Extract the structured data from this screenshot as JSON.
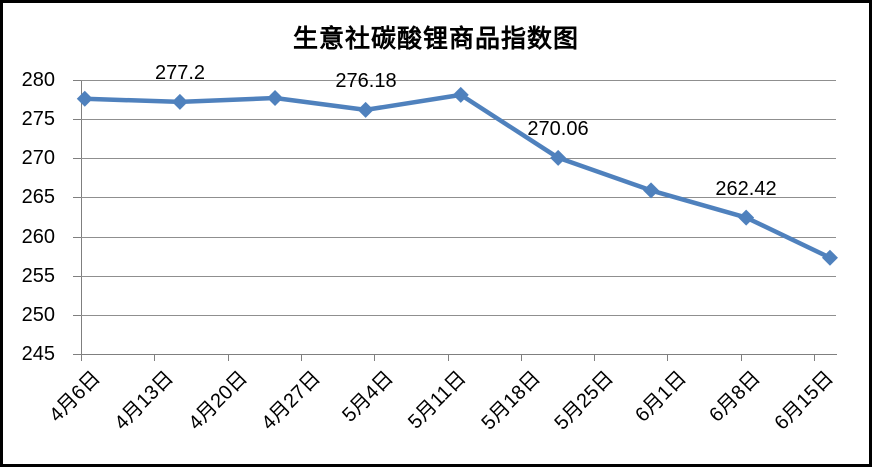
{
  "title": "生意社碳酸锂商品指数图",
  "chart_data": {
    "type": "line",
    "title": "生意社碳酸锂商品指数图",
    "xlabel": "",
    "ylabel": "",
    "ylim": [
      245,
      280
    ],
    "y_step": 5,
    "y_tick_labels": [
      "245",
      "250",
      "255",
      "260",
      "265",
      "270",
      "275",
      "280"
    ],
    "x_tick_labels": [
      "4月6日",
      "4月13日",
      "4月20日",
      "4月27日",
      "5月4日",
      "5月11日",
      "5月18日",
      "5月25日",
      "6月1日",
      "6月8日",
      "6月15日"
    ],
    "grid": true,
    "legend": false,
    "series": [
      {
        "marker": "diamond",
        "values": [
          277.6,
          277.2,
          277.7,
          276.18,
          278.1,
          270.06,
          265.9,
          262.42,
          257.3
        ],
        "data_labels": [
          "",
          "277.2",
          "",
          "276.18",
          "",
          "270.06",
          "",
          "262.42",
          ""
        ],
        "x_frac": [
          0.005,
          0.131,
          0.257,
          0.377,
          0.503,
          0.632,
          0.755,
          0.881,
          0.992
        ]
      }
    ],
    "colors": {
      "line": "#4f81bd",
      "gridline": "#8f8f8f",
      "axis": "#7f7f7f",
      "text": "#000000",
      "background": "#ffffff",
      "frame": "#000000"
    }
  }
}
